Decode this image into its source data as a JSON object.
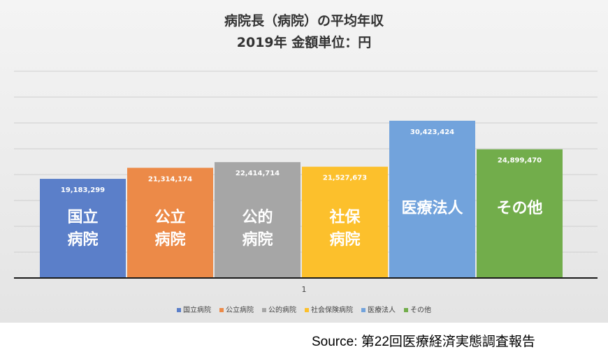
{
  "chart_data": {
    "type": "bar",
    "title": "病院長（病院）の平均年収",
    "subtitle": "2019年 金額単位：円",
    "x_tick_label": "1",
    "ylim": [
      0,
      40000000
    ],
    "grid": true,
    "legend_position": "bottom",
    "series": [
      {
        "name": "国立病院",
        "value": 19183299,
        "label": "19,183,299",
        "bar_text": [
          "国立",
          "病院"
        ],
        "color": "#5b7fc9"
      },
      {
        "name": "公立病院",
        "value": 21314174,
        "label": "21,314,174",
        "bar_text": [
          "公立",
          "病院"
        ],
        "color": "#ec8a48"
      },
      {
        "name": "公的病院",
        "value": 22414714,
        "label": "22,414,714",
        "bar_text": [
          "公的",
          "病院"
        ],
        "color": "#a6a6a6"
      },
      {
        "name": "社会保険病院",
        "value": 21527673,
        "label": "21,527,673",
        "bar_text": [
          "社保",
          "病院"
        ],
        "color": "#fcc02c"
      },
      {
        "name": "医療法人",
        "value": 30423424,
        "label": "30,423,424",
        "bar_text": [
          "医療法人"
        ],
        "color": "#72a3dc"
      },
      {
        "name": "その他",
        "value": 24899470,
        "label": "24,899,470",
        "bar_text": [
          "その他"
        ],
        "color": "#72ad4b"
      }
    ]
  },
  "source": "Source: 第22回医療経済実態調査報告"
}
